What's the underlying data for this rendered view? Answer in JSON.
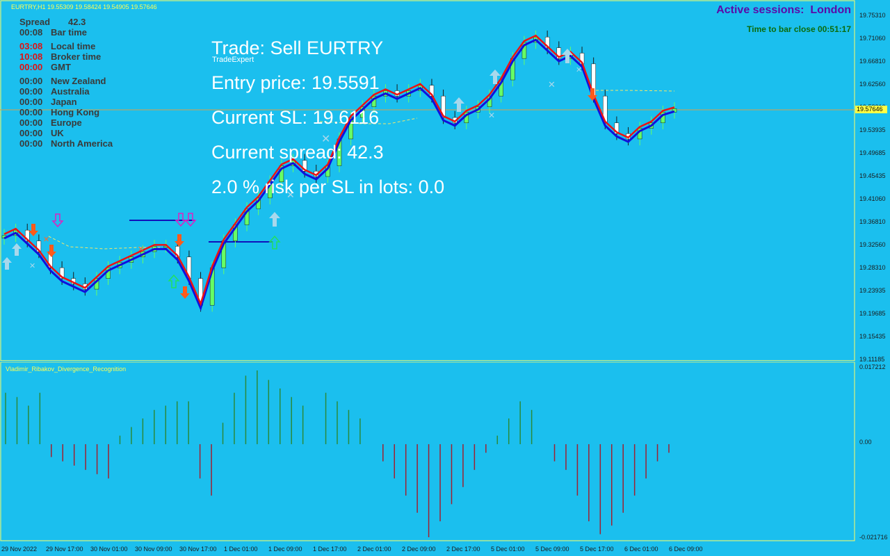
{
  "window": {
    "symbol_label": "EURTRY,H1  19.55309 19.58424 19.54905 19.57646"
  },
  "info_panel": {
    "spread_label": "Spread",
    "spread_value": "42.3",
    "rows": [
      {
        "time": "00:08",
        "label": "Bar time",
        "color": "dark"
      },
      {
        "time": "03:08",
        "label": "Local time",
        "color": "red"
      },
      {
        "time": "10:08",
        "label": "Broker time",
        "color": "red"
      },
      {
        "time": "00:00",
        "label": "GMT",
        "color": "red"
      },
      {
        "time": "00:00",
        "label": "New Zealand",
        "color": "dark"
      },
      {
        "time": "00:00",
        "label": "Australia",
        "color": "dark"
      },
      {
        "time": "00:00",
        "label": "Japan",
        "color": "dark"
      },
      {
        "time": "00:00",
        "label": "Hong Kong",
        "color": "dark"
      },
      {
        "time": "00:00",
        "label": "Europe",
        "color": "dark"
      },
      {
        "time": "00:00",
        "label": "UK",
        "color": "dark"
      },
      {
        "time": "00:00",
        "label": "North America",
        "color": "dark"
      }
    ]
  },
  "trade_overlay": {
    "trade": "Trade: Sell EURTRY",
    "ea_name": "TradeExpert",
    "entry": "Entry price: 19.5591",
    "sl": "Current SL: 19.6116",
    "spread": "Current spread: 42.3",
    "risk": "2.0 % risk per SL in lots: 0.0"
  },
  "sessions": {
    "active": "Active sessions:  London",
    "bar_close": "Time to bar close 00:51:17"
  },
  "indicator": {
    "title": "Vladimir_Ribakov_Divergence_Recognition"
  },
  "price_axis": [
    "19.75310",
    "19.71060",
    "19.66810",
    "19.62560",
    "19.58310",
    "19.53935",
    "19.49685",
    "19.45435",
    "19.41060",
    "19.36810",
    "19.32560",
    "19.28310",
    "19.23935",
    "19.19685",
    "19.15435",
    "19.11185"
  ],
  "current_price_tag": "19.57646",
  "indicator_axis": [
    "0.017212",
    "0.00",
    "-0.021716"
  ],
  "time_axis": [
    "29 Nov 2022",
    "29 Nov 17:00",
    "30 Nov 01:00",
    "30 Nov 09:00",
    "30 Nov 17:00",
    "1 Dec 01:00",
    "1 Dec 09:00",
    "1 Dec 17:00",
    "2 Dec 01:00",
    "2 Dec 09:00",
    "2 Dec 17:00",
    "5 Dec 01:00",
    "5 Dec 09:00",
    "5 Dec 17:00",
    "6 Dec 01:00",
    "6 Dec 09:00"
  ],
  "colors": {
    "background": "#1bbfee",
    "bull": "#66ff66",
    "bear": "#ffffff",
    "ma_blue": "#1010dd",
    "ma_red": "#ee1111",
    "grid": "#ffff66"
  },
  "chart_data": {
    "type": "candlestick",
    "ylim": [
      19.11185,
      19.7531
    ],
    "close_series": [
      19.34,
      19.35,
      19.33,
      19.31,
      19.28,
      19.26,
      19.25,
      19.24,
      19.26,
      19.28,
      19.29,
      19.3,
      19.31,
      19.32,
      19.32,
      19.3,
      19.26,
      19.21,
      19.28,
      19.33,
      19.36,
      19.39,
      19.41,
      19.44,
      19.47,
      19.48,
      19.46,
      19.45,
      19.47,
      19.52,
      19.56,
      19.58,
      19.6,
      19.61,
      19.6,
      19.61,
      19.62,
      19.6,
      19.56,
      19.55,
      19.57,
      19.58,
      19.6,
      19.63,
      19.67,
      19.7,
      19.71,
      19.69,
      19.67,
      19.68,
      19.66,
      19.6,
      19.55,
      19.53,
      19.52,
      19.54,
      19.55,
      19.57,
      19.57646
    ],
    "indicator_values": [
      0.012,
      0.011,
      0.009,
      0.012,
      -0.003,
      -0.004,
      -0.005,
      -0.006,
      -0.007,
      -0.008,
      0.002,
      0.004,
      0.006,
      0.008,
      0.009,
      0.01,
      0.01,
      -0.008,
      -0.012,
      0.005,
      0.012,
      0.016,
      0.017212,
      0.015,
      0.013,
      0.011,
      0.009,
      0.0,
      0.012,
      0.01,
      0.008,
      0.006,
      0.0,
      -0.004,
      -0.008,
      -0.012,
      -0.016,
      -0.021716,
      -0.018,
      -0.014,
      -0.01,
      -0.006,
      -0.002,
      0.002,
      0.006,
      0.01,
      0.008,
      0.0,
      -0.004,
      -0.006,
      -0.012,
      -0.018,
      -0.021,
      -0.019,
      -0.016,
      -0.012,
      -0.008,
      -0.004,
      -0.002
    ]
  }
}
